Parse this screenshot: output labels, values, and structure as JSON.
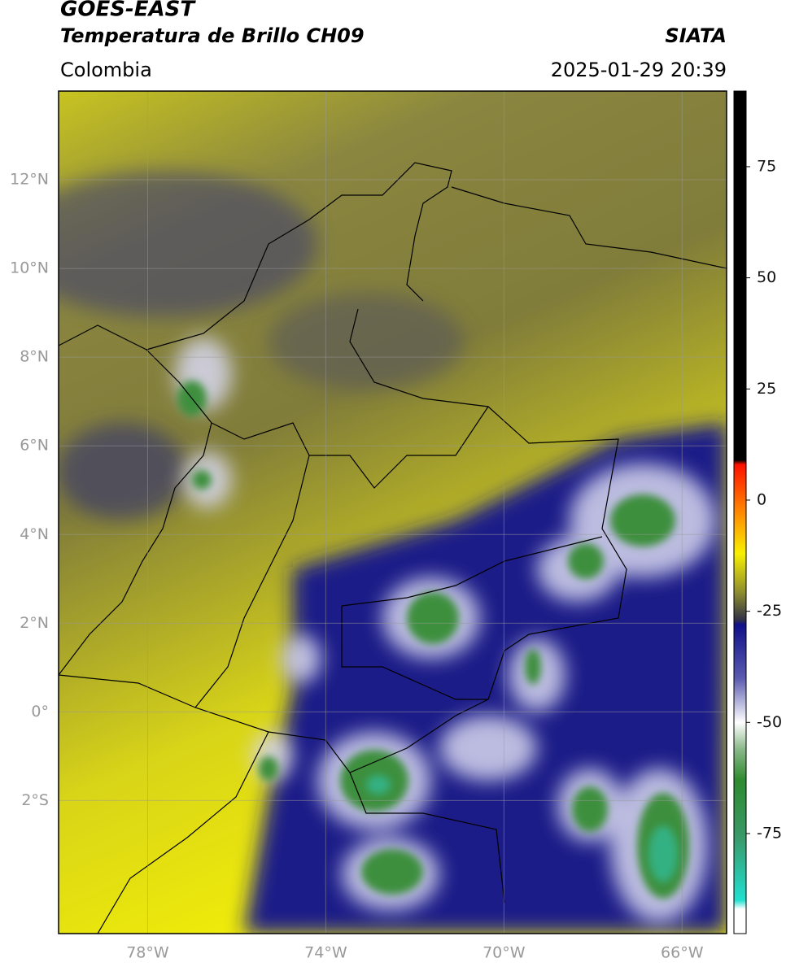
{
  "header": {
    "title": "GOES-EAST",
    "subtitle": "Temperatura de Brillo CH09",
    "source": "SIATA",
    "region": "Colombia",
    "datetime": "2025-01-29 20:39"
  },
  "map": {
    "xlim": [
      -80,
      -65
    ],
    "ylim": [
      -5,
      14
    ],
    "xticks": [
      {
        "value": -78,
        "label": "78°W"
      },
      {
        "value": -74,
        "label": "74°W"
      },
      {
        "value": -70,
        "label": "70°W"
      },
      {
        "value": -66,
        "label": "66°W"
      }
    ],
    "yticks": [
      {
        "value": 12,
        "label": "12°N"
      },
      {
        "value": 10,
        "label": "10°N"
      },
      {
        "value": 8,
        "label": "8°N"
      },
      {
        "value": 6,
        "label": "6°N"
      },
      {
        "value": 4,
        "label": "4°N"
      },
      {
        "value": 2,
        "label": "2°N"
      },
      {
        "value": 0,
        "label": "0°"
      },
      {
        "value": -2,
        "label": "2°S"
      }
    ],
    "grid": true
  },
  "colorbar": {
    "lim": [
      -97.5,
      92
    ],
    "ticks": [
      75,
      50,
      25,
      0,
      -25,
      -50,
      -75
    ],
    "stops": [
      {
        "value": 92,
        "color": "#000000"
      },
      {
        "value": 9,
        "color": "#000000"
      },
      {
        "value": 8,
        "color": "#ff1000"
      },
      {
        "value": -3,
        "color": "#ff8c00"
      },
      {
        "value": -12,
        "color": "#f8f000"
      },
      {
        "value": -21,
        "color": "#8a8a30"
      },
      {
        "value": -27,
        "color": "#303048"
      },
      {
        "value": -28,
        "color": "#10108a"
      },
      {
        "value": -40,
        "color": "#5a5ab0"
      },
      {
        "value": -50,
        "color": "#ffffff"
      },
      {
        "value": -56,
        "color": "#8ab88a"
      },
      {
        "value": -63,
        "color": "#2e8b2e"
      },
      {
        "value": -76,
        "color": "#3a9a6a"
      },
      {
        "value": -90,
        "color": "#20e0d0"
      },
      {
        "value": -92,
        "color": "#ffffff"
      },
      {
        "value": -97.5,
        "color": "#ffffff"
      }
    ]
  }
}
